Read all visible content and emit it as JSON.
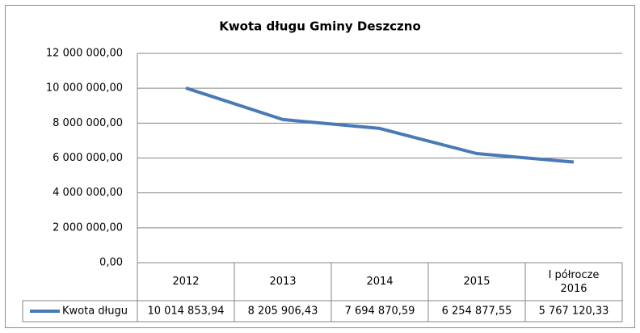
{
  "chart_data": {
    "type": "line",
    "title": "Kwota długu Gminy Deszczno",
    "categories": [
      "2012",
      "2013",
      "2014",
      "2015",
      "I półrocze 2016"
    ],
    "series": [
      {
        "name": "Kwota długu",
        "color": "#4a7ab5",
        "values": [
          10014853.94,
          8205906.43,
          7694870.59,
          6254877.55,
          5767120.33
        ],
        "value_labels": [
          "10 014 853,94",
          "8 205 906,43",
          "7 694 870,59",
          "6 254 877,55",
          "5 767 120,33"
        ]
      }
    ],
    "ylim": [
      0,
      12000000
    ],
    "yticks": [
      {
        "value": 0,
        "label": "0,00"
      },
      {
        "value": 2000000,
        "label": "2 000 000,00"
      },
      {
        "value": 4000000,
        "label": "4 000 000,00"
      },
      {
        "value": 6000000,
        "label": "6 000 000,00"
      },
      {
        "value": 8000000,
        "label": "8 000 000,00"
      },
      {
        "value": 10000000,
        "label": "10 000 000,00"
      },
      {
        "value": 12000000,
        "label": "12 000 000,00"
      }
    ],
    "grid": true,
    "data_table": true
  }
}
